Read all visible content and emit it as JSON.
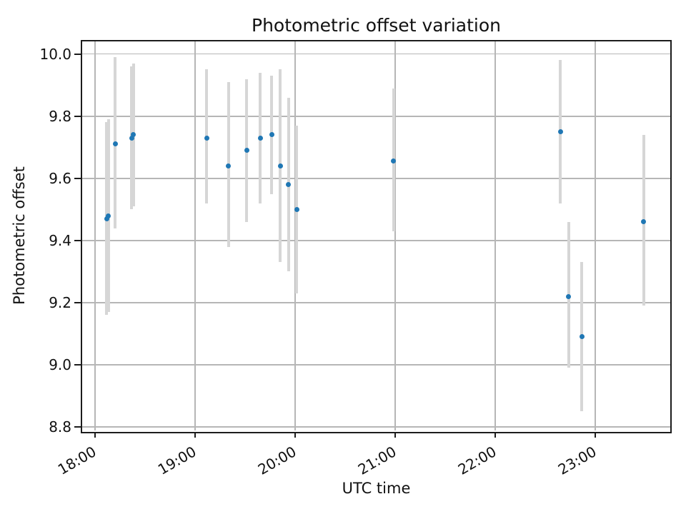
{
  "chart_data": {
    "type": "scatter",
    "title": "Photometric offset variation",
    "xlabel": "UTC time",
    "ylabel": "Photometric offset",
    "x_ticks": [
      "18:00",
      "19:00",
      "20:00",
      "21:00",
      "22:00",
      "23:00"
    ],
    "y_ticks": [
      8.8,
      9.0,
      9.2,
      9.4,
      9.6,
      9.8,
      10.0
    ],
    "xlim": [
      "17:52",
      "23:45"
    ],
    "ylim": [
      8.79,
      10.04
    ],
    "grid": true,
    "marker_color": "#1f77b4",
    "errorbar_color": "#d6d6d6",
    "grid_color": "#b6b6b6",
    "points": [
      {
        "t": "18:07",
        "y": 9.47,
        "lo": 9.16,
        "hi": 9.78
      },
      {
        "t": "18:08",
        "y": 9.48,
        "lo": 9.17,
        "hi": 9.79
      },
      {
        "t": "18:12",
        "y": 9.71,
        "lo": 9.44,
        "hi": 9.99
      },
      {
        "t": "18:22",
        "y": 9.73,
        "lo": 9.5,
        "hi": 9.96
      },
      {
        "t": "18:23",
        "y": 9.74,
        "lo": 9.51,
        "hi": 9.97
      },
      {
        "t": "19:07",
        "y": 9.73,
        "lo": 9.52,
        "hi": 9.95
      },
      {
        "t": "19:20",
        "y": 9.64,
        "lo": 9.38,
        "hi": 9.91
      },
      {
        "t": "19:31",
        "y": 9.69,
        "lo": 9.46,
        "hi": 9.92
      },
      {
        "t": "19:39",
        "y": 9.73,
        "lo": 9.52,
        "hi": 9.94
      },
      {
        "t": "19:46",
        "y": 9.74,
        "lo": 9.55,
        "hi": 9.93
      },
      {
        "t": "19:51",
        "y": 9.64,
        "lo": 9.33,
        "hi": 9.95
      },
      {
        "t": "19:56",
        "y": 9.58,
        "lo": 9.3,
        "hi": 9.86
      },
      {
        "t": "20:01",
        "y": 9.5,
        "lo": 9.23,
        "hi": 9.77
      },
      {
        "t": "20:59",
        "y": 9.655,
        "lo": 9.43,
        "hi": 9.89
      },
      {
        "t": "22:39",
        "y": 9.75,
        "lo": 9.52,
        "hi": 9.98
      },
      {
        "t": "22:44",
        "y": 9.22,
        "lo": 8.99,
        "hi": 9.46
      },
      {
        "t": "22:52",
        "y": 9.09,
        "lo": 8.85,
        "hi": 9.33
      },
      {
        "t": "23:29",
        "y": 9.46,
        "lo": 9.19,
        "hi": 9.74
      }
    ]
  }
}
